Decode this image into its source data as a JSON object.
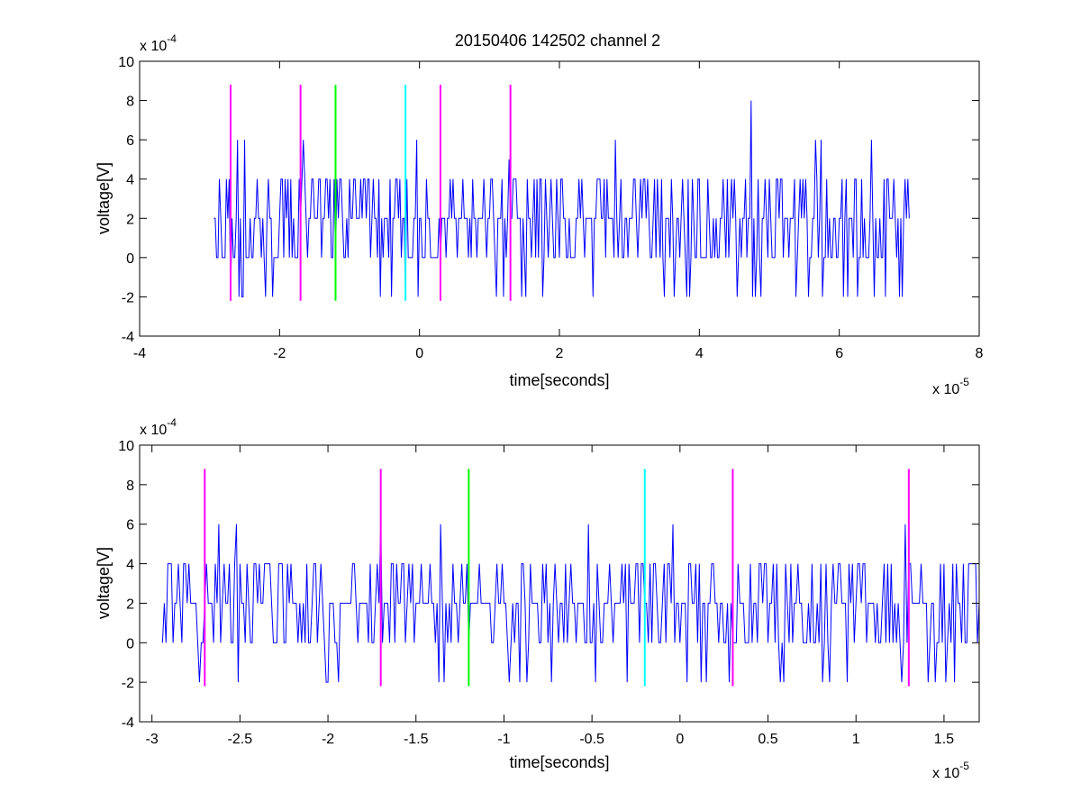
{
  "figure_title": "20150406 142502 channel 2",
  "colors": {
    "signal": "#0000ff",
    "magenta": "#ff00ff",
    "green": "#00ff00",
    "cyan": "#00ffff",
    "axis": "#000000",
    "background": "#ffffff"
  },
  "chart_data": [
    {
      "type": "line",
      "title": "20150406 142502 channel 2",
      "xlabel": "time[seconds]",
      "ylabel": "voltage[V]",
      "x_multiplier": "x 10",
      "x_exponent": "-5",
      "y_multiplier": "x 10",
      "y_exponent": "-4",
      "xlim": [
        -4,
        8
      ],
      "ylim": [
        -4,
        10
      ],
      "xticks": [
        -4,
        -2,
        0,
        2,
        4,
        6,
        8
      ],
      "xtick_labels": [
        "-4",
        "-2",
        "0",
        "2",
        "4",
        "6",
        "8"
      ],
      "yticks": [
        -4,
        -2,
        0,
        2,
        4,
        6,
        8,
        10
      ],
      "ytick_labels": [
        "-4",
        "-2",
        "0",
        "2",
        "4",
        "6",
        "8",
        "10"
      ],
      "grid": false,
      "series": [
        {
          "color": "#0000ff",
          "style": "noise",
          "x_range": [
            -2.94,
            7.0
          ],
          "sample_step": 0.02,
          "levels": [
            -2,
            0,
            2,
            4,
            6,
            8
          ],
          "baseline": 2,
          "peaks": [
            {
              "x": -2.6,
              "y": 6
            },
            {
              "x": -2.5,
              "y": 6
            },
            {
              "x": -1.66,
              "y": 6
            },
            {
              "x": -0.05,
              "y": 6
            },
            {
              "x": 1.28,
              "y": 5
            },
            {
              "x": 2.8,
              "y": 6
            },
            {
              "x": 4.75,
              "y": 8
            },
            {
              "x": 5.65,
              "y": 6
            },
            {
              "x": 5.75,
              "y": 6
            },
            {
              "x": 6.45,
              "y": 6
            }
          ]
        }
      ],
      "vlines": [
        {
          "x": -2.7,
          "y_range": [
            -2.2,
            8.8
          ],
          "color": "#ff00ff"
        },
        {
          "x": -1.7,
          "y_range": [
            -2.2,
            8.8
          ],
          "color": "#ff00ff"
        },
        {
          "x": -1.2,
          "y_range": [
            -2.2,
            8.8
          ],
          "color": "#00ff00"
        },
        {
          "x": -0.2,
          "y_range": [
            -2.2,
            8.8
          ],
          "color": "#00ffff"
        },
        {
          "x": 0.3,
          "y_range": [
            -2.2,
            8.8
          ],
          "color": "#ff00ff"
        },
        {
          "x": 1.3,
          "y_range": [
            -2.2,
            8.8
          ],
          "color": "#ff00ff"
        }
      ]
    },
    {
      "type": "line",
      "title": "",
      "xlabel": "time[seconds]",
      "ylabel": "voltage[V]",
      "x_multiplier": "x 10",
      "x_exponent": "-5",
      "y_multiplier": "x 10",
      "y_exponent": "-4",
      "xlim": [
        -3.07,
        1.7
      ],
      "ylim": [
        -4,
        10
      ],
      "xticks": [
        -3,
        -2.5,
        -2,
        -1.5,
        -1,
        -0.5,
        0,
        0.5,
        1,
        1.5
      ],
      "xtick_labels": [
        "-3",
        "-2.5",
        "-2",
        "-1.5",
        "-1",
        "-0.5",
        "0",
        "0.5",
        "1",
        "1.5"
      ],
      "yticks": [
        -4,
        -2,
        0,
        2,
        4,
        6,
        8,
        10
      ],
      "ytick_labels": [
        "-4",
        "-2",
        "0",
        "2",
        "4",
        "6",
        "8",
        "10"
      ],
      "grid": false,
      "series": [
        {
          "color": "#0000ff",
          "style": "noise",
          "x_range": [
            -2.94,
            1.7
          ],
          "sample_step": 0.01,
          "levels": [
            -2,
            0,
            2,
            4,
            6
          ],
          "baseline": 2,
          "peaks": [
            {
              "x": -2.62,
              "y": 6
            },
            {
              "x": -2.52,
              "y": 6
            },
            {
              "x": -1.7,
              "y": 6
            },
            {
              "x": -1.36,
              "y": 6
            },
            {
              "x": -0.52,
              "y": 6
            },
            {
              "x": -0.04,
              "y": 6
            },
            {
              "x": 1.28,
              "y": 6
            }
          ]
        }
      ],
      "vlines": [
        {
          "x": -2.7,
          "y_range": [
            -2.2,
            8.8
          ],
          "color": "#ff00ff"
        },
        {
          "x": -1.7,
          "y_range": [
            -2.2,
            8.8
          ],
          "color": "#ff00ff"
        },
        {
          "x": -1.2,
          "y_range": [
            -2.2,
            8.8
          ],
          "color": "#00ff00"
        },
        {
          "x": -0.2,
          "y_range": [
            -2.2,
            8.8
          ],
          "color": "#00ffff"
        },
        {
          "x": 0.3,
          "y_range": [
            -2.2,
            8.8
          ],
          "color": "#ff00ff"
        },
        {
          "x": 1.3,
          "y_range": [
            -2.2,
            8.8
          ],
          "color": "#ff00ff"
        }
      ]
    }
  ]
}
